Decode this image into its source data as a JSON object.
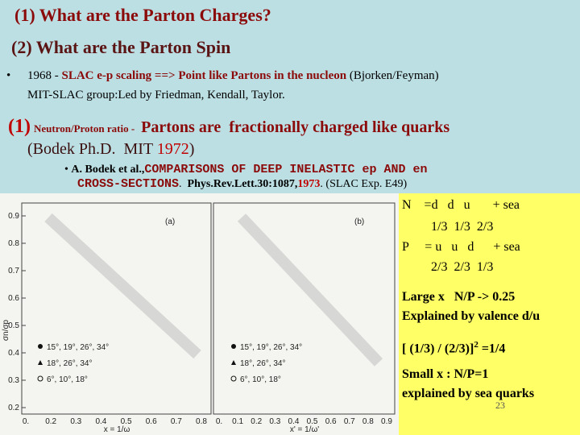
{
  "header": {
    "title1": "(1) What are the Parton Charges?",
    "title2": "(2) What are the Parton Spin"
  },
  "bullet1": {
    "line1": [
      "1968 - ",
      "SLAC e-p scaling ==> Point like Partons in the nucleon",
      " (Bjorken/Feyman)"
    ],
    "line2": "MIT-SLAC group:Led by Friedman, Kendall, Taylor."
  },
  "point1": {
    "number": "(1)",
    "small": "Neutron/Proton ratio -",
    "main": "Partons are  fractionally charged like quarks",
    "line2": [
      "(Bodek Ph.D.  MIT ",
      "1972",
      ")"
    ]
  },
  "reference": {
    "authors": "A. Bodek et al.,",
    "title1": "COMPARISONS OF DEEP INELASTIC ep AND en",
    "title2": "CROSS-SECTIONS",
    "dot": ".",
    "journal": "Phys.Rev.Lett.30:1087,",
    "year": "1973",
    "tail": ". (SLAC Exp. E49)"
  },
  "figure": {
    "ylabel": "σn/σp",
    "yticks": [
      "0.9",
      "0.8",
      "0.7",
      "0.6",
      "0.5",
      "0.4",
      "0.3",
      "0.2"
    ],
    "panel_a": {
      "tag": "(a)",
      "xticks": [
        "0.",
        "0.2",
        "0.3",
        "0.4",
        "0.5",
        "0.6",
        "0.7",
        "0.8"
      ],
      "xlabel": "x = 1/ω",
      "legend": [
        "15°, 19°, 26°, 34°",
        "18°, 26°, 34°",
        "6°, 10°, 18°"
      ]
    },
    "panel_b": {
      "tag": "(b)",
      "xticks": [
        "0.",
        "0.1",
        "0.2",
        "0.3",
        "0.4",
        "0.5",
        "0.6",
        "0.7",
        "0.8",
        "0.9"
      ],
      "xlabel": "x' = 1/ω'",
      "legend": [
        "15°, 19°, 26°, 34°",
        "18°, 26°, 34°",
        "6°, 10°, 18°"
      ]
    }
  },
  "side": {
    "n_line": "N    =d   d   u       + sea",
    "n_charges": "1/3  1/3  2/3",
    "p_line": "P     = u   u   d      + sea",
    "p_charges": "2/3  2/3  1/3",
    "large1": "Large x   N/P -> 0.25",
    "large2": "Explained by valence d/u",
    "ratio": "[ (1/3) / (2/3)]",
    "power": "2",
    "ratio_result": " =1/4",
    "small1": "Small x : N/P=1",
    "small2": "explained by sea quarks"
  },
  "page_number": "23"
}
